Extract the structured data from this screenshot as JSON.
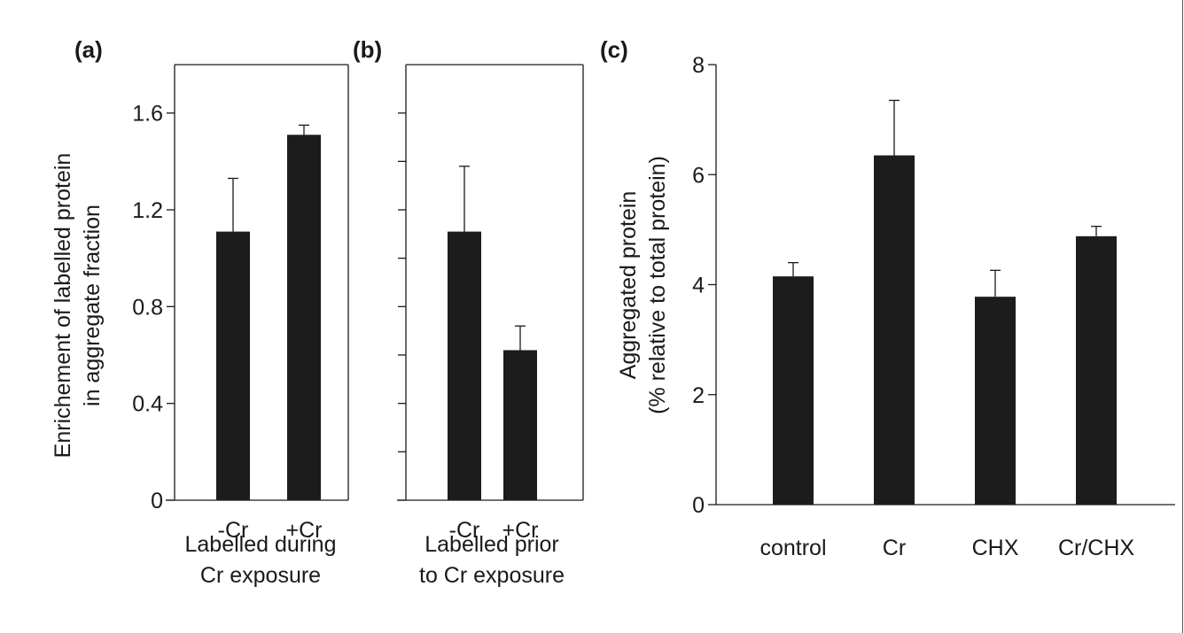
{
  "chart_data": [
    {
      "panel_label": "(a)",
      "type": "bar",
      "categories": [
        "-Cr",
        "+Cr"
      ],
      "values": [
        1.11,
        1.51
      ],
      "errors": [
        0.22,
        0.04
      ],
      "xlabel_lines": [
        "Labelled during",
        "Cr exposure"
      ],
      "ylabel_lines": [
        "Enrichement of labelled protein",
        "in aggregate fraction"
      ],
      "ylim": [
        0,
        1.6
      ],
      "yticks": [
        0,
        0.4,
        0.8,
        1.2,
        1.6
      ],
      "ytick_labels": [
        "0",
        "0.4",
        "0.8",
        "1.2",
        "1.6"
      ],
      "ymax": 1.8,
      "grid": false,
      "bar_color": "#1c1c1c"
    },
    {
      "panel_label": "(b)",
      "type": "bar",
      "categories": [
        "-Cr",
        "+Cr"
      ],
      "values": [
        1.11,
        0.62
      ],
      "errors": [
        0.27,
        0.1
      ],
      "xlabel_lines": [
        "Labelled prior",
        "to Cr exposure"
      ],
      "ylim": [
        0,
        1.6
      ],
      "yticks": [
        0,
        0.2,
        0.4,
        0.6,
        0.8,
        1.0,
        1.2,
        1.4,
        1.6
      ],
      "ymax": 1.8,
      "grid": false,
      "bar_color": "#1c1c1c"
    },
    {
      "panel_label": "(c)",
      "type": "bar",
      "categories": [
        "control",
        "Cr",
        "CHX",
        "Cr/CHX"
      ],
      "values": [
        4.15,
        6.35,
        3.78,
        4.88
      ],
      "errors": [
        0.25,
        1.0,
        0.48,
        0.18
      ],
      "ylabel_lines": [
        "Aggregated protein",
        "(% relative to total protein)"
      ],
      "ylim": [
        0,
        8
      ],
      "yticks": [
        0,
        2,
        4,
        6,
        8
      ],
      "ytick_labels": [
        "0",
        "2",
        "4",
        "6",
        "8"
      ],
      "grid": false,
      "bar_color": "#1c1c1c"
    }
  ]
}
